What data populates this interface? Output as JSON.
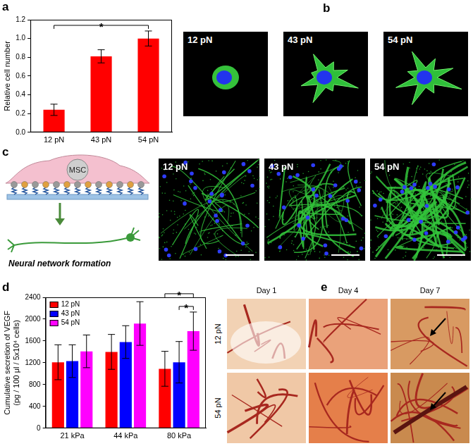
{
  "panel_labels": [
    "a",
    "b",
    "c",
    "d",
    "e"
  ],
  "chart_data": [
    {
      "type": "bar",
      "categories": [
        "12 pN",
        "43 pN",
        "54 pN"
      ],
      "values": [
        0.24,
        0.81,
        1.0
      ],
      "errors": [
        0.06,
        0.07,
        0.08
      ],
      "color": "#ff0000",
      "y_label": "Relative cell number",
      "ylim": [
        0,
        1.2
      ],
      "yticks": [
        {
          "value": 0,
          "label": "0.0"
        },
        0.2,
        0.4,
        0.6,
        0.8,
        {
          "value": 1,
          "label": "1.0"
        },
        1.2
      ],
      "grid": false,
      "annotations": [
        {
          "text": "*",
          "from": "12 pN",
          "to": "54 pN"
        }
      ]
    },
    {
      "type": "bar",
      "categories": [
        "21 kPa",
        "44 kPa",
        "80 kPa"
      ],
      "series": [
        {
          "name": "12 pN",
          "color": "#ff0000",
          "values": [
            1210,
            1400,
            1090
          ],
          "errors": [
            320,
            320,
            320
          ]
        },
        {
          "name": "43 pN",
          "color": "#0000ff",
          "values": [
            1230,
            1580,
            1210
          ],
          "errors": [
            300,
            300,
            380
          ]
        },
        {
          "name": "54 pN",
          "color": "#ff00ff",
          "values": [
            1410,
            1920,
            1780
          ],
          "errors": [
            300,
            400,
            350
          ]
        }
      ],
      "y_label": [
        "Cumulative secretion of VEGF",
        "(pg / 100 μl / 5x10⁴ cells)"
      ],
      "ylim": [
        0,
        2400
      ],
      "yticks": [
        0,
        400,
        800,
        1200,
        1600,
        2000,
        2400
      ],
      "grid": false,
      "legend": "upper left",
      "annotations": [
        {
          "text": "*",
          "category": "80 kPa",
          "from": "12 pN",
          "to": "54 pN"
        },
        {
          "text": "*",
          "category": "80 kPa",
          "from": "43 pN",
          "to": "54 pN"
        }
      ]
    }
  ],
  "panel_b": {
    "images": [
      "12 pN",
      "43 pN",
      "54 pN"
    ]
  },
  "panel_c": {
    "diagram": {
      "cell": "MSC",
      "caption": "Neural network formation"
    },
    "images": [
      "12 pN",
      "43 pN",
      "54 pN"
    ]
  },
  "panel_e": {
    "columns": [
      "Day 1",
      "Day 4",
      "Day 7"
    ],
    "rows": [
      "12 pN",
      "54 pN"
    ]
  }
}
